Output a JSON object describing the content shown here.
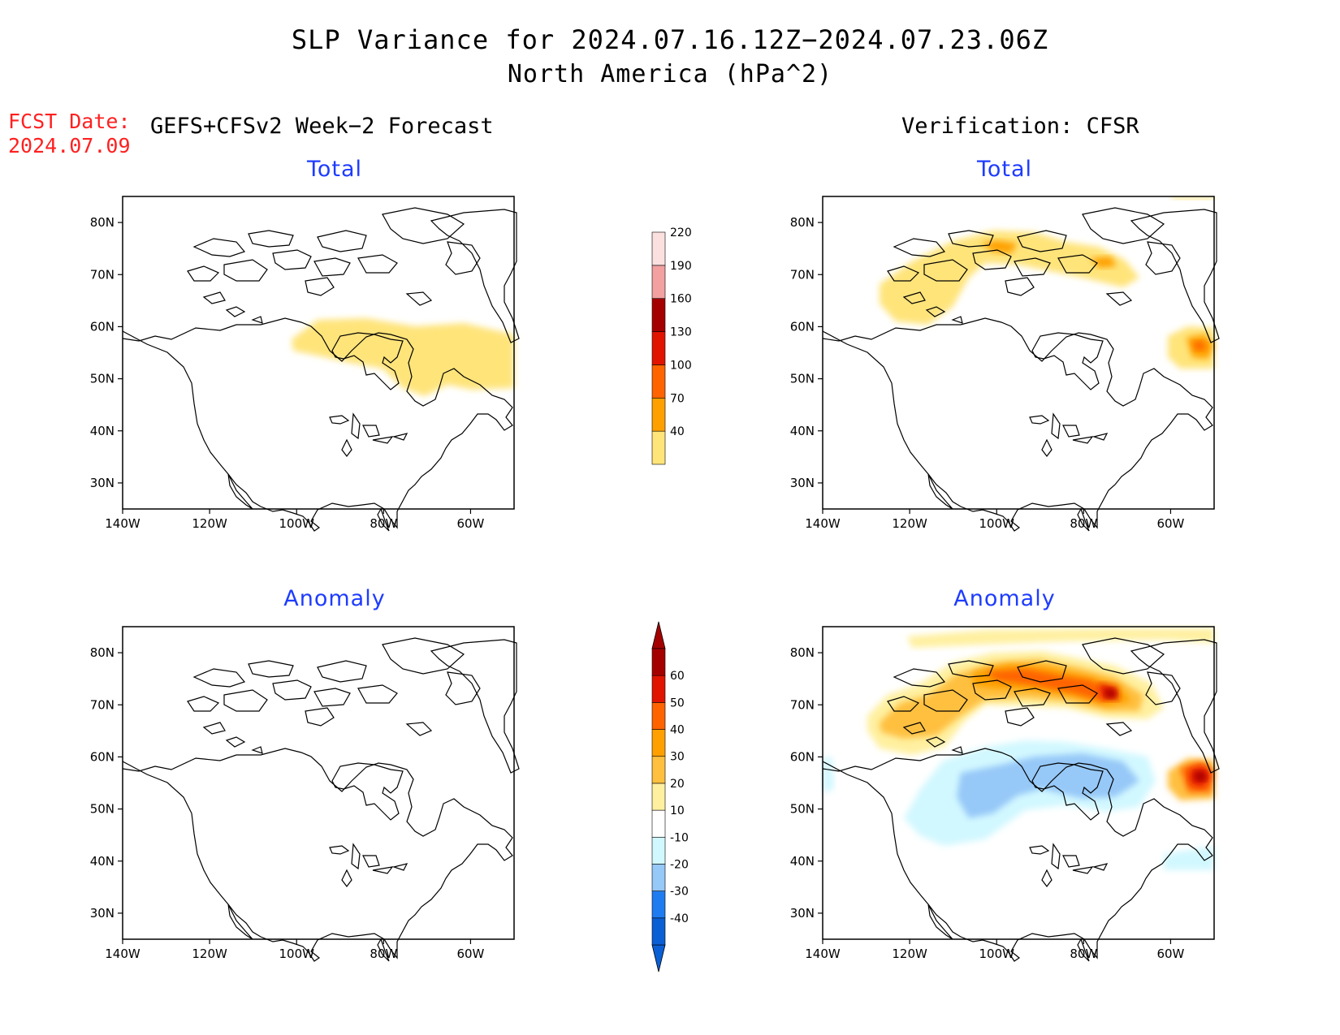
{
  "title": {
    "line1": "SLP Variance for 2024.07.16.12Z−2024.07.23.06Z",
    "line2": "North America (hPa^2)"
  },
  "fcst_date": {
    "label": "FCST Date:",
    "value": "2024.07.09"
  },
  "headers": {
    "left": "GEFS+CFSv2 Week−2 Forecast",
    "right": "Verification: CFSR"
  },
  "panels": [
    {
      "id": "forecast-total",
      "title": "Total"
    },
    {
      "id": "verification-total",
      "title": "Total"
    },
    {
      "id": "forecast-anomaly",
      "title": "Anomaly"
    },
    {
      "id": "verification-anomaly",
      "title": "Anomaly"
    }
  ],
  "axes": {
    "lat_labels": [
      "80N",
      "70N",
      "60N",
      "50N",
      "40N",
      "30N"
    ],
    "lat_values": [
      80,
      70,
      60,
      50,
      40,
      30
    ],
    "lon_labels": [
      "140W",
      "120W",
      "100W",
      "80W",
      "60W"
    ],
    "lon_values": [
      -140,
      -120,
      -100,
      -80,
      -60
    ],
    "lon_range": [
      -140,
      -50
    ],
    "lat_range": [
      25,
      85
    ]
  },
  "total_colorbar": {
    "levels": [
      "40",
      "70",
      "100",
      "130",
      "160",
      "190",
      "220"
    ],
    "colors": [
      "#ffe47a",
      "#ffa000",
      "#ff6400",
      "#e11400",
      "#a50000",
      "#f2a0a0",
      "#fbe0e0"
    ]
  },
  "anomaly_colorbar": {
    "levels": [
      "-40",
      "-30",
      "-20",
      "-10",
      "10",
      "20",
      "30",
      "40",
      "50",
      "60"
    ],
    "colors": [
      "#0a5fd5",
      "#1e7cf0",
      "#96c8f8",
      "#d2f8ff",
      "#ffffff",
      "#fff0a0",
      "#ffc040",
      "#ffa000",
      "#ff6400",
      "#e11400",
      "#a50000"
    ]
  },
  "colors": {
    "title_blue": "#1e3cff",
    "fcst_red": "#ff2020"
  }
}
